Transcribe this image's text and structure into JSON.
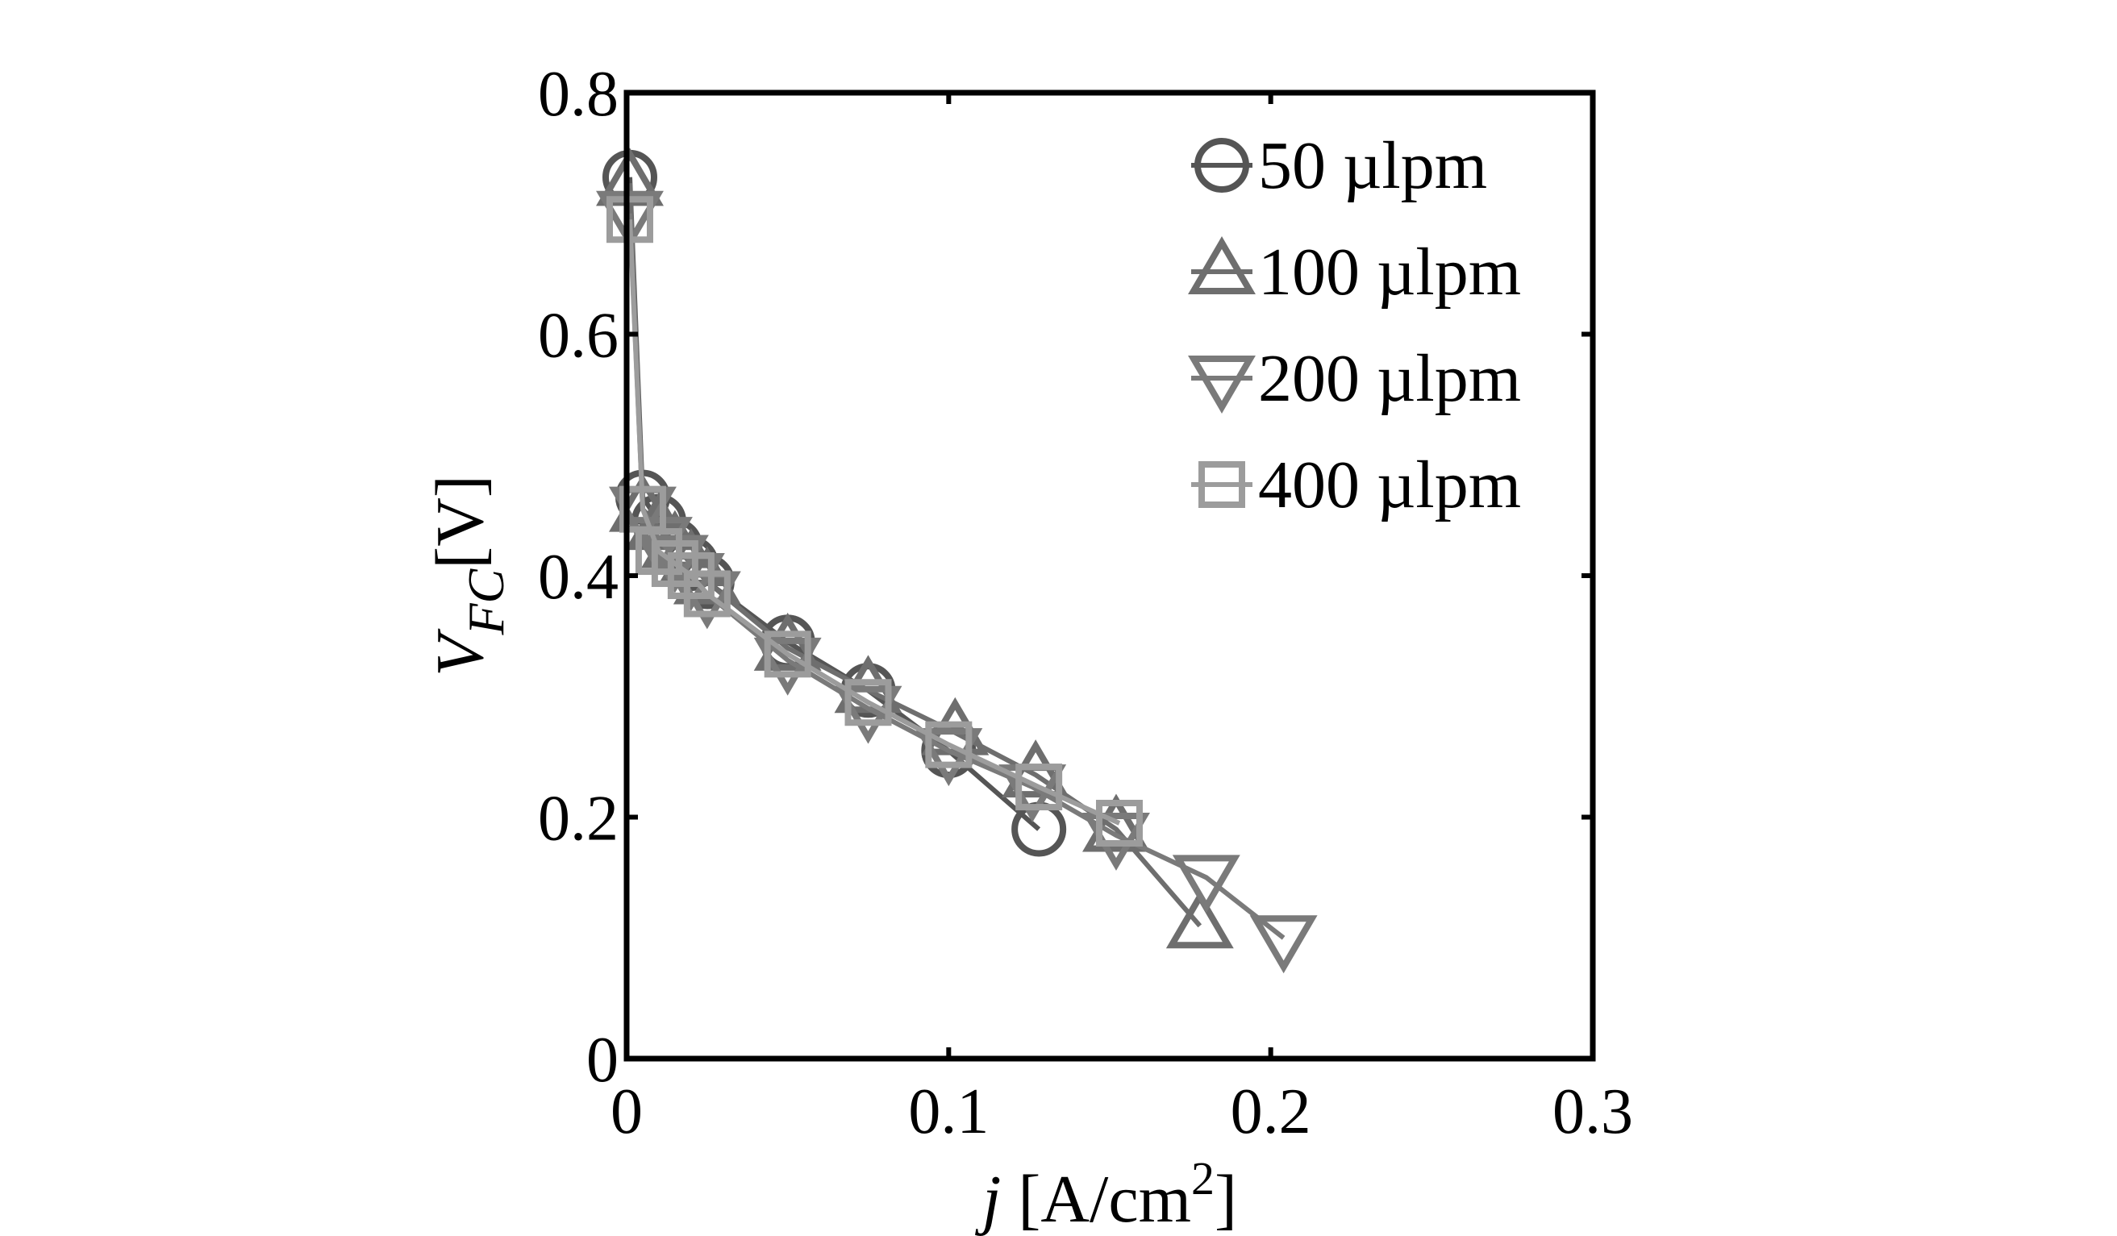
{
  "chart_data": {
    "type": "line",
    "xlabel_italic": "j",
    "xlabel_rest": " [A/cm",
    "xlabel_sup": "2",
    "xlabel_close": "]",
    "ylabel_italic_main": "V",
    "ylabel_italic_sub": "FC",
    "ylabel_rest": "[V]",
    "xlim": [
      0,
      0.3
    ],
    "ylim": [
      0,
      0.8
    ],
    "xticks": [
      0,
      0.1,
      0.2,
      0.3
    ],
    "xtick_labels": [
      "0",
      "0.1",
      "0.2",
      "0.3"
    ],
    "yticks": [
      0,
      0.2,
      0.4,
      0.6,
      0.8
    ],
    "ytick_labels": [
      "0",
      "0.2",
      "0.4",
      "0.6",
      "0.8"
    ],
    "legend_position": "top-right",
    "grid": false,
    "series": [
      {
        "name": "50 µlpm",
        "marker": "circle",
        "color": "#555555",
        "x": [
          0.001,
          0.005,
          0.01,
          0.015,
          0.02,
          0.025,
          0.05,
          0.075,
          0.1,
          0.128
        ],
        "y": [
          0.73,
          0.465,
          0.445,
          0.425,
          0.41,
          0.395,
          0.345,
          0.305,
          0.255,
          0.19
        ]
      },
      {
        "name": "100 µlpm",
        "marker": "triangle-up",
        "color": "#6e6e6e",
        "x": [
          0.001,
          0.005,
          0.01,
          0.015,
          0.02,
          0.025,
          0.05,
          0.075,
          0.102,
          0.127,
          0.152,
          0.178
        ],
        "y": [
          0.725,
          0.455,
          0.44,
          0.425,
          0.41,
          0.395,
          0.34,
          0.305,
          0.27,
          0.235,
          0.19,
          0.11
        ]
      },
      {
        "name": "200 µlpm",
        "marker": "triangle-down",
        "color": "#7a7a7a",
        "x": [
          0.001,
          0.005,
          0.01,
          0.015,
          0.02,
          0.025,
          0.05,
          0.075,
          0.1,
          0.126,
          0.152,
          0.18,
          0.204
        ],
        "y": [
          0.7,
          0.455,
          0.43,
          0.415,
          0.4,
          0.385,
          0.33,
          0.29,
          0.255,
          0.225,
          0.185,
          0.15,
          0.1
        ]
      },
      {
        "name": "400 µlpm",
        "marker": "square",
        "color": "#9c9c9c",
        "x": [
          0.001,
          0.005,
          0.01,
          0.015,
          0.02,
          0.025,
          0.05,
          0.075,
          0.1,
          0.128,
          0.153
        ],
        "y": [
          0.695,
          0.455,
          0.42,
          0.41,
          0.4,
          0.385,
          0.335,
          0.295,
          0.26,
          0.225,
          0.195
        ]
      }
    ]
  }
}
